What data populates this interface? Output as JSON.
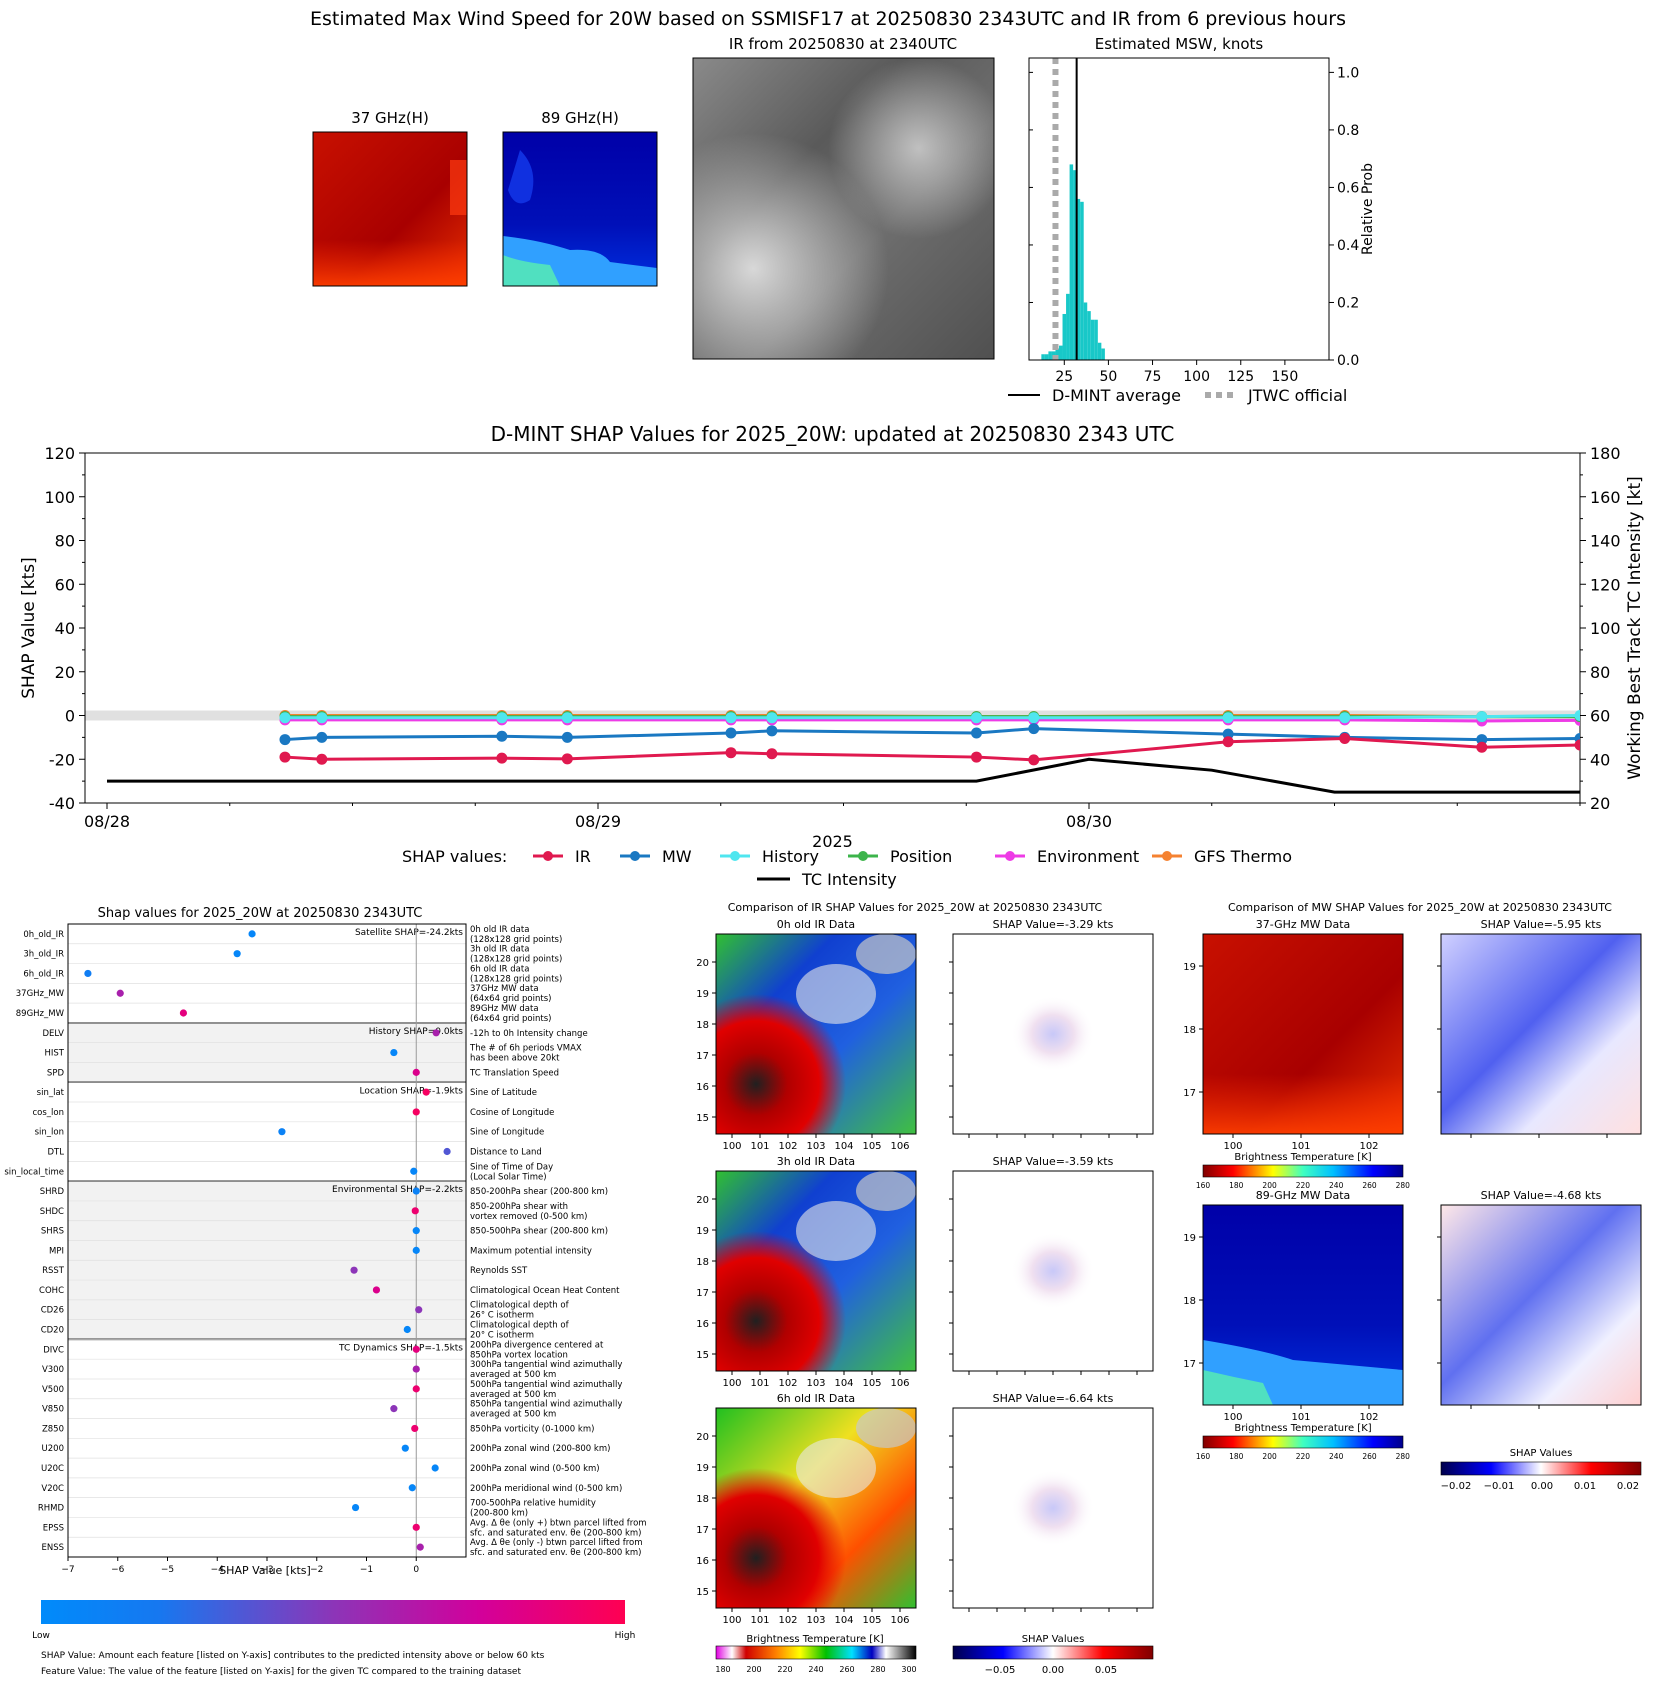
{
  "page_title": "Estimated Max Wind Speed for 20W based on SSMISF17 at 20250830 2343UTC and IR from 6 previous hours",
  "top_panels": {
    "mw37_title": "37 GHz(H)",
    "mw89_title": "89 GHz(H)",
    "ir_title": "IR from 20250830 at 2340UTC"
  },
  "colors": {
    "ir": "#e0194f",
    "mw": "#1a78c2",
    "history": "#4fe6ef",
    "position": "#3cb44b",
    "environment": "#ee3be6",
    "gfs": "#f58231",
    "intensity": "#000000",
    "hist_bar": "#18c8c8",
    "jtwc": "#aaaaaa"
  },
  "chart_data": [
    {
      "type": "bar",
      "title": "Estimated MSW, knots",
      "ylabel": "Relative Prob",
      "xlim": [
        5,
        175
      ],
      "ylim": [
        0,
        1.05
      ],
      "xticks": [
        25,
        50,
        75,
        100,
        125,
        150
      ],
      "yticks": [
        0.0,
        0.2,
        0.4,
        0.6,
        0.8,
        1.0
      ],
      "bin_width": 2,
      "bins": [
        [
          12,
          0.02
        ],
        [
          14,
          0.02
        ],
        [
          16,
          0.03
        ],
        [
          18,
          0.03
        ],
        [
          20,
          0.04
        ],
        [
          22,
          0.05
        ],
        [
          24,
          0.16
        ],
        [
          26,
          0.23
        ],
        [
          28,
          0.68
        ],
        [
          30,
          0.66
        ],
        [
          32,
          0.56
        ],
        [
          34,
          0.55
        ],
        [
          36,
          0.2
        ],
        [
          38,
          0.17
        ],
        [
          40,
          0.14
        ],
        [
          42,
          0.14
        ],
        [
          44,
          0.06
        ],
        [
          46,
          0.04
        ]
      ],
      "dmint_average": 32,
      "jtwc_official": 20,
      "legend": [
        "D-MINT average",
        "JTWC official"
      ]
    },
    {
      "type": "line",
      "title": "D-MINT SHAP Values for 2025_20W: updated at 20250830 2343 UTC",
      "xlabel": "2025",
      "ylabel": "SHAP Value [kts]",
      "y2label": "Working Best Track TC Intensity [kt]",
      "ylim": [
        -40,
        120
      ],
      "y2lim": [
        20,
        180
      ],
      "yticks": [
        -40,
        -20,
        0,
        20,
        40,
        60,
        80,
        100,
        120
      ],
      "y2ticks": [
        20,
        40,
        60,
        80,
        100,
        120,
        140,
        160,
        180
      ],
      "xlim": [
        0,
        72
      ],
      "xtick_labels": [
        "08/28",
        "08/29",
        "08/30"
      ],
      "xtick_positions": [
        0,
        24,
        48
      ],
      "legend_prefix": "SHAP values:",
      "x": [
        8.7,
        10.5,
        19.3,
        22.5,
        30.5,
        32.5,
        42.5,
        45.3,
        54.8,
        60.5,
        67.2,
        72
      ],
      "series": [
        {
          "name": "IR",
          "values": [
            -19,
            -20,
            -19.5,
            -19.8,
            -17,
            -17.5,
            -19,
            -20.3,
            -12,
            -10.5,
            -14.5,
            -13.5
          ]
        },
        {
          "name": "MW",
          "values": [
            -11,
            -10,
            -9.5,
            -10,
            -8,
            -7,
            -8,
            -6,
            -8.5,
            -10,
            -11,
            -10.5
          ]
        },
        {
          "name": "History",
          "values": [
            -1,
            -1,
            -1,
            -1,
            -1,
            -1,
            -1,
            -1,
            -1,
            -1,
            -0.5,
            0
          ]
        },
        {
          "name": "Position",
          "values": [
            -0.5,
            -0.5,
            -0.5,
            -0.5,
            -0.5,
            -0.5,
            -0.5,
            -0.5,
            -0.5,
            -0.5,
            -0.5,
            -0.5
          ]
        },
        {
          "name": "Environment",
          "values": [
            -2,
            -2,
            -2,
            -2,
            -2,
            -2,
            -2,
            -2,
            -2,
            -2,
            -2.5,
            -2.2
          ]
        },
        {
          "name": "GFS Thermo",
          "values": [
            0,
            0,
            0,
            0,
            0,
            0,
            -0.5,
            -0.5,
            0,
            0,
            -0.5,
            -0.5
          ]
        }
      ],
      "tc_intensity": {
        "name": "TC Intensity",
        "x": [
          0,
          42.5,
          48,
          54,
          60,
          72
        ],
        "values": [
          30,
          30,
          40,
          35,
          25,
          25
        ]
      }
    },
    {
      "type": "scatter",
      "title": "Shap values for 2025_20W at 20250830 2343UTC",
      "xlabel": "SHAP Value [kts]",
      "xlim": [
        -7,
        1
      ],
      "xticks": [
        -7,
        -6,
        -5,
        -4,
        -3,
        -2,
        -1,
        0
      ],
      "groups": [
        {
          "label": "Satellite SHAP=-24.2kts",
          "shaded": false,
          "features": [
            {
              "name": "0h_old_IR",
              "desc": [
                "0h old IR data",
                "(128x128 grid points)"
              ],
              "shap": -3.3,
              "val": 0.05
            },
            {
              "name": "3h_old_IR",
              "desc": [
                "3h old IR data",
                "(128x128 grid points)"
              ],
              "shap": -3.6,
              "val": 0.05
            },
            {
              "name": "6h_old_IR",
              "desc": [
                "6h old IR data",
                "(128x128 grid points)"
              ],
              "shap": -6.6,
              "val": 0.15
            },
            {
              "name": "37GHz_MW",
              "desc": [
                "37GHz MW data",
                "(64x64 grid points)"
              ],
              "shap": -5.95,
              "val": 0.6
            },
            {
              "name": "89GHz_MW",
              "desc": [
                "89GHz MW data",
                "(64x64 grid points)"
              ],
              "shap": -4.68,
              "val": 0.85
            }
          ]
        },
        {
          "label": "History SHAP=0.0kts",
          "shaded": true,
          "features": [
            {
              "name": "DELV",
              "desc": [
                "-12h to 0h Intensity change"
              ],
              "shap": 0.4,
              "val": 0.6
            },
            {
              "name": "HIST",
              "desc": [
                "The # of 6h periods VMAX",
                "has been above 20kt"
              ],
              "shap": -0.45,
              "val": 0.05
            },
            {
              "name": "SPD",
              "desc": [
                "TC Translation Speed"
              ],
              "shap": 0.0,
              "val": 0.8
            }
          ]
        },
        {
          "label": "Location SHAP=-1.9kts",
          "shaded": false,
          "features": [
            {
              "name": "sin_lat",
              "desc": [
                "Sine of Latitude"
              ],
              "shap": 0.2,
              "val": 0.95
            },
            {
              "name": "cos_lon",
              "desc": [
                "Cosine of Longitude"
              ],
              "shap": 0.0,
              "val": 0.95
            },
            {
              "name": "sin_lon",
              "desc": [
                "Sine of Longitude"
              ],
              "shap": -2.7,
              "val": 0.1
            },
            {
              "name": "DTL",
              "desc": [
                "Distance to Land"
              ],
              "shap": 0.62,
              "val": 0.35
            },
            {
              "name": "sin_local_time",
              "desc": [
                "Sine of Time of Day",
                "(Local Solar Time)"
              ],
              "shap": -0.05,
              "val": 0.05
            }
          ]
        },
        {
          "label": "Environmental SHAP=-2.2kts",
          "shaded": true,
          "features": [
            {
              "name": "SHRD",
              "desc": [
                "850-200hPa shear (200-800 km)"
              ],
              "shap": 0.0,
              "val": 0.1
            },
            {
              "name": "SHDC",
              "desc": [
                "850-200hPa shear with",
                "vortex removed (0-500 km)"
              ],
              "shap": -0.02,
              "val": 0.9
            },
            {
              "name": "SHRS",
              "desc": [
                "850-500hPa shear (200-800 km)"
              ],
              "shap": 0.0,
              "val": 0.05
            },
            {
              "name": "MPI",
              "desc": [
                "Maximum potential intensity"
              ],
              "shap": 0.0,
              "val": 0.05
            },
            {
              "name": "RSST",
              "desc": [
                "Reynolds SST"
              ],
              "shap": -1.25,
              "val": 0.5
            },
            {
              "name": "COHC",
              "desc": [
                "Climatological Ocean Heat Content"
              ],
              "shap": -0.8,
              "val": 0.8
            },
            {
              "name": "CD26",
              "desc": [
                "Climatological depth of",
                "26° C isotherm"
              ],
              "shap": 0.05,
              "val": 0.5
            },
            {
              "name": "CD20",
              "desc": [
                "Climatological depth of",
                "20° C isotherm"
              ],
              "shap": -0.18,
              "val": 0.05
            }
          ]
        },
        {
          "label": "TC Dynamics SHAP=-1.5kts",
          "shaded": false,
          "features": [
            {
              "name": "DIVC",
              "desc": [
                "200hPa divergence centered at",
                "850hPa vortex location"
              ],
              "shap": 0.0,
              "val": 0.85
            },
            {
              "name": "V300",
              "desc": [
                "300hPa tangential wind azimuthally",
                "averaged at 500 km"
              ],
              "shap": 0.0,
              "val": 0.6
            },
            {
              "name": "V500",
              "desc": [
                "500hPa tangential wind azimuthally",
                "averaged at 500 km"
              ],
              "shap": 0.0,
              "val": 0.9
            },
            {
              "name": "V850",
              "desc": [
                "850hPa tangential wind azimuthally",
                "averaged at 500 km"
              ],
              "shap": -0.45,
              "val": 0.5
            },
            {
              "name": "Z850",
              "desc": [
                "850hPa vorticity (0-1000 km)"
              ],
              "shap": -0.03,
              "val": 0.9
            },
            {
              "name": "U200",
              "desc": [
                "200hPa zonal wind (200-800 km)"
              ],
              "shap": -0.22,
              "val": 0.05
            },
            {
              "name": "U20C",
              "desc": [
                "200hPa zonal wind (0-500 km)"
              ],
              "shap": 0.38,
              "val": 0.05
            },
            {
              "name": "V20C",
              "desc": [
                "200hPa meridional wind (0-500 km)"
              ],
              "shap": -0.08,
              "val": 0.05
            },
            {
              "name": "RHMD",
              "desc": [
                "700-500hPa relative humidity",
                "(200-800 km)"
              ],
              "shap": -1.22,
              "val": 0.05
            },
            {
              "name": "EPSS",
              "desc": [
                "Avg. Δ θe (only +) btwn parcel lifted from",
                "sfc. and saturated env. θe (200-800 km)"
              ],
              "shap": 0.0,
              "val": 0.9
            },
            {
              "name": "ENSS",
              "desc": [
                "Avg. Δ θe (only -) btwn parcel lifted from",
                "sfc. and saturated env. θe (200-800 km)"
              ],
              "shap": 0.08,
              "val": 0.6
            }
          ]
        }
      ],
      "colorbar": {
        "low": "Low",
        "high": "High"
      }
    }
  ],
  "footnotes": [
    "SHAP Value: Amount each feature [listed on Y-axis] contributes to the predicted intensity above or below 60 kts",
    "Feature Value: The value of the feature [listed on Y-axis] for the given TC compared to the training dataset"
  ],
  "ir_comparison": {
    "title": "Comparison of IR SHAP Values for 2025_20W at 20250830 2343UTC",
    "rows": [
      {
        "data_title": "0h old IR Data",
        "shap_title": "SHAP Value=-3.29 kts"
      },
      {
        "data_title": "3h old IR Data",
        "shap_title": "SHAP Value=-3.59 kts"
      },
      {
        "data_title": "6h old IR Data",
        "shap_title": "SHAP Value=-6.64 kts"
      }
    ],
    "xticks": [
      "100",
      "101",
      "102",
      "103",
      "104",
      "105",
      "106"
    ],
    "yticks": [
      "20",
      "19",
      "18",
      "17",
      "16",
      "15"
    ],
    "cbar_label": "Brightness Temperature [K]",
    "cbar_ticks": [
      "180",
      "200",
      "220",
      "240",
      "260",
      "280",
      "300"
    ],
    "shap_cbar_label": "SHAP Values",
    "shap_cbar_ticks": [
      "−0.05",
      "0.00",
      "0.05"
    ]
  },
  "mw_comparison": {
    "title": "Comparison of MW SHAP Values for 2025_20W at 20250830 2343UTC",
    "rows": [
      {
        "data_title": "37-GHz MW Data",
        "shap_title": "SHAP Value=-5.95 kts"
      },
      {
        "data_title": "89-GHz MW Data",
        "shap_title": "SHAP Value=-4.68 kts"
      }
    ],
    "xticks": [
      "100",
      "101",
      "102"
    ],
    "yticks": [
      "19",
      "18",
      "17"
    ],
    "cbar_label": "Brightness Temperature [K]",
    "cbar_ticks": [
      "160",
      "180",
      "200",
      "220",
      "240",
      "260",
      "280"
    ],
    "shap_cbar_label": "SHAP Values",
    "shap_cbar_ticks": [
      "−0.02",
      "−0.01",
      "0.00",
      "0.01",
      "0.02"
    ]
  }
}
